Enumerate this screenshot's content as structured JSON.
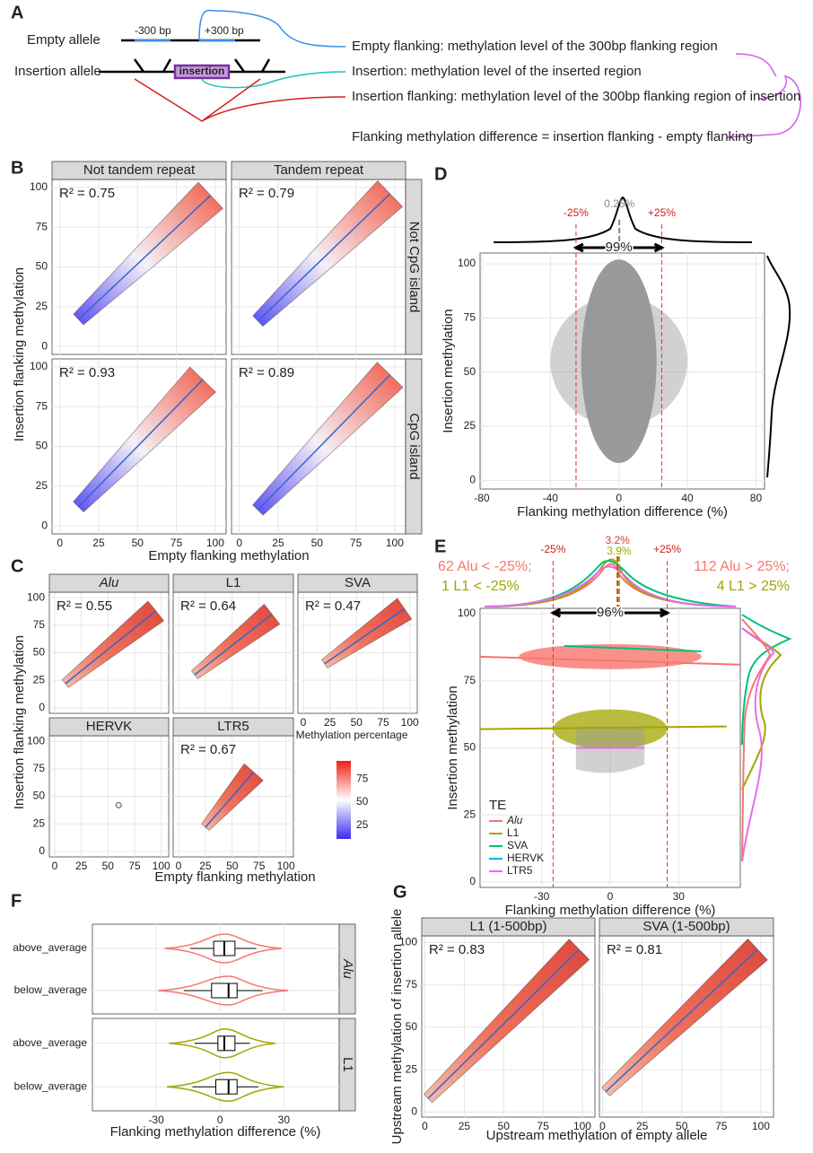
{
  "diagram": {
    "label": "A",
    "empty_allele": "Empty allele",
    "insertion_allele": "Insertion allele",
    "minus": "-300 bp",
    "plus": "+300 bp",
    "insertion": "insertion",
    "definitions": [
      "Empty flanking: methylation level of the 300bp flanking region",
      "Insertion: methylation level of the inserted region",
      "Insertion flanking: methylation level of the 300bp flanking region of insertion",
      "Flanking methylation difference = insertion flanking - empty flanking"
    ]
  },
  "chart_data": [
    {
      "type": "facet_scatter",
      "panel_label": "B",
      "xlabel": "Empty flanking methylation",
      "ylabel": "Insertion flanking methylation",
      "xlim": [
        -5,
        107
      ],
      "ylim": [
        -5,
        105
      ],
      "xticks": [
        0,
        25,
        50,
        75,
        100
      ],
      "yticks": [
        0,
        25,
        50,
        75,
        100
      ],
      "col_strips": [
        "Not tandem repeat",
        "Tandem repeat"
      ],
      "row_strips": [
        "Not CpG island",
        "CpG island"
      ],
      "facets": [
        {
          "annotation": "R² = 0.75",
          "fit": {
            "x": [
              12,
              97
            ],
            "y": [
              17,
              95
            ]
          }
        },
        {
          "annotation": "R² = 0.79",
          "fit": {
            "x": [
              12,
              97
            ],
            "y": [
              16,
              96
            ]
          }
        },
        {
          "annotation": "R² = 0.93",
          "fit": {
            "x": [
              12,
              92
            ],
            "y": [
              12,
              92
            ]
          }
        },
        {
          "annotation": "R² = 0.89",
          "fit": {
            "x": [
              12,
              97
            ],
            "y": [
              10,
              95
            ]
          }
        }
      ]
    },
    {
      "type": "facet_scatter",
      "panel_label": "C",
      "xlabel": "Empty flanking methylation",
      "ylabel": "Insertion flanking methylation",
      "xlim": [
        -5,
        107
      ],
      "ylim": [
        -5,
        105
      ],
      "xticks": [
        0,
        25,
        50,
        75,
        100
      ],
      "yticks": [
        0,
        25,
        50,
        75,
        100
      ],
      "strips": [
        "Alu",
        "L1",
        "SVA",
        "HERVK",
        "LTR5"
      ],
      "facets": [
        {
          "annotation": "R² = 0.55",
          "fit": {
            "x": [
              10,
              95
            ],
            "y": [
              22,
              88
            ]
          }
        },
        {
          "annotation": "R² = 0.64",
          "fit": {
            "x": [
              15,
              87
            ],
            "y": [
              30,
              85
            ]
          }
        },
        {
          "annotation": "R² = 0.47",
          "fit": {
            "x": [
              20,
              95
            ],
            "y": [
              40,
              90
            ]
          }
        },
        {
          "points": {
            "x": [
              60
            ],
            "y": [
              42
            ]
          }
        },
        {
          "annotation": "R² = 0.67",
          "fit": {
            "x": [
              25,
              70
            ],
            "y": [
              22,
              72
            ]
          }
        }
      ],
      "colorbar": {
        "title": "Methylation percentage",
        "lim": [
          10,
          95
        ],
        "ticks": [
          25,
          50,
          75
        ],
        "colors": [
          "#3b2cf0",
          "#ffffff",
          "#f02010"
        ]
      }
    },
    {
      "type": "scatter_density",
      "panel_label": "D",
      "xlabel": "Flanking methylation difference (%)",
      "ylabel": "Insertion methylation",
      "xlim": [
        -81,
        85
      ],
      "ylim": [
        -4,
        105
      ],
      "xticks": [
        -80,
        -40,
        0,
        40,
        80
      ],
      "yticks": [
        0,
        25,
        50,
        75,
        100
      ],
      "vlines": [
        -25,
        25
      ],
      "vline_labels": [
        "-25%",
        "+25%"
      ],
      "peaks": [
        {
          "value": 0.25,
          "label": "0.25%",
          "color": "#888888"
        }
      ],
      "span_label": "99%",
      "color": "#9a9a9a"
    },
    {
      "type": "scatter_density",
      "panel_label": "E",
      "xlabel": "Flanking methylation difference (%)",
      "ylabel": "Insertion methylation",
      "xlim": [
        -57,
        57
      ],
      "ylim": [
        -2,
        102
      ],
      "xticks": [
        -30,
        0,
        30
      ],
      "yticks": [
        0,
        25,
        50,
        75,
        100
      ],
      "vlines": [
        -25,
        25
      ],
      "vline_labels": [
        "-25%",
        "+25%"
      ],
      "peaks": [
        {
          "value": 3.2,
          "label": "3.2%",
          "color": "#d23a3a"
        },
        {
          "value": 3.9,
          "label": "3.9%",
          "color": "#a3a500"
        }
      ],
      "span_label": "96%",
      "counts": [
        "62 Alu < -25%;",
        "1 L1 < -25%",
        "112 Alu > 25%;",
        "4 L1 > 25%"
      ],
      "legend_title": "TE",
      "series": [
        {
          "name": "Alu",
          "color": "#f8766d",
          "fit": {
            "x": [
              -57,
              57
            ],
            "y": [
              84,
              81
            ]
          }
        },
        {
          "name": "L1",
          "color": "#a3a500",
          "fit": {
            "x": [
              -57,
              51
            ],
            "y": [
              57,
              58
            ]
          }
        },
        {
          "name": "SVA",
          "color": "#00bf7d",
          "fit": {
            "x": [
              -20,
              40
            ],
            "y": [
              88,
              86
            ]
          }
        },
        {
          "name": "HERVK",
          "color": "#00b0f6"
        },
        {
          "name": "LTR5",
          "color": "#e76bf3",
          "fit": {
            "x": [
              -15,
              15
            ],
            "y": [
              50,
              50
            ]
          }
        }
      ]
    },
    {
      "type": "box",
      "panel_label": "F",
      "xlabel": "Flanking methylation difference (%)",
      "xlim": [
        -60,
        56
      ],
      "xticks": [
        -30,
        0,
        30
      ],
      "categories": [
        "above_average",
        "below_average"
      ],
      "facets": [
        {
          "strip": "Alu",
          "color": "#f8766d",
          "boxes": [
            {
              "lo": -14,
              "q1": -3,
              "median": 2,
              "q3": 7,
              "hi": 17
            },
            {
              "lo": -17,
              "q1": -4,
              "median": 4,
              "q3": 8,
              "hi": 20
            }
          ]
        },
        {
          "strip": "L1",
          "color": "#a3a500",
          "boxes": [
            {
              "lo": -12,
              "q1": -1,
              "median": 2,
              "q3": 7,
              "hi": 14
            },
            {
              "lo": -13,
              "q1": -2,
              "median": 4,
              "q3": 8,
              "hi": 18
            }
          ]
        }
      ]
    },
    {
      "type": "facet_scatter",
      "panel_label": "G",
      "xlabel": "Upstream methylation of empty allele",
      "ylabel": "Upstream methylation of insertion allele",
      "xlim": [
        -2,
        108
      ],
      "ylim": [
        -3,
        104
      ],
      "xticks": [
        0,
        25,
        50,
        75,
        100
      ],
      "yticks": [
        0,
        25,
        50,
        75,
        100
      ],
      "strips": [
        "L1 (1-500bp)",
        "SVA (1-500bp)"
      ],
      "facets": [
        {
          "annotation": "R² = 0.83",
          "fit": {
            "x": [
              2,
              98
            ],
            "y": [
              8,
              96
            ]
          }
        },
        {
          "annotation": "R² = 0.81",
          "fit": {
            "x": [
              2,
              98
            ],
            "y": [
              12,
              96
            ]
          }
        }
      ]
    }
  ]
}
